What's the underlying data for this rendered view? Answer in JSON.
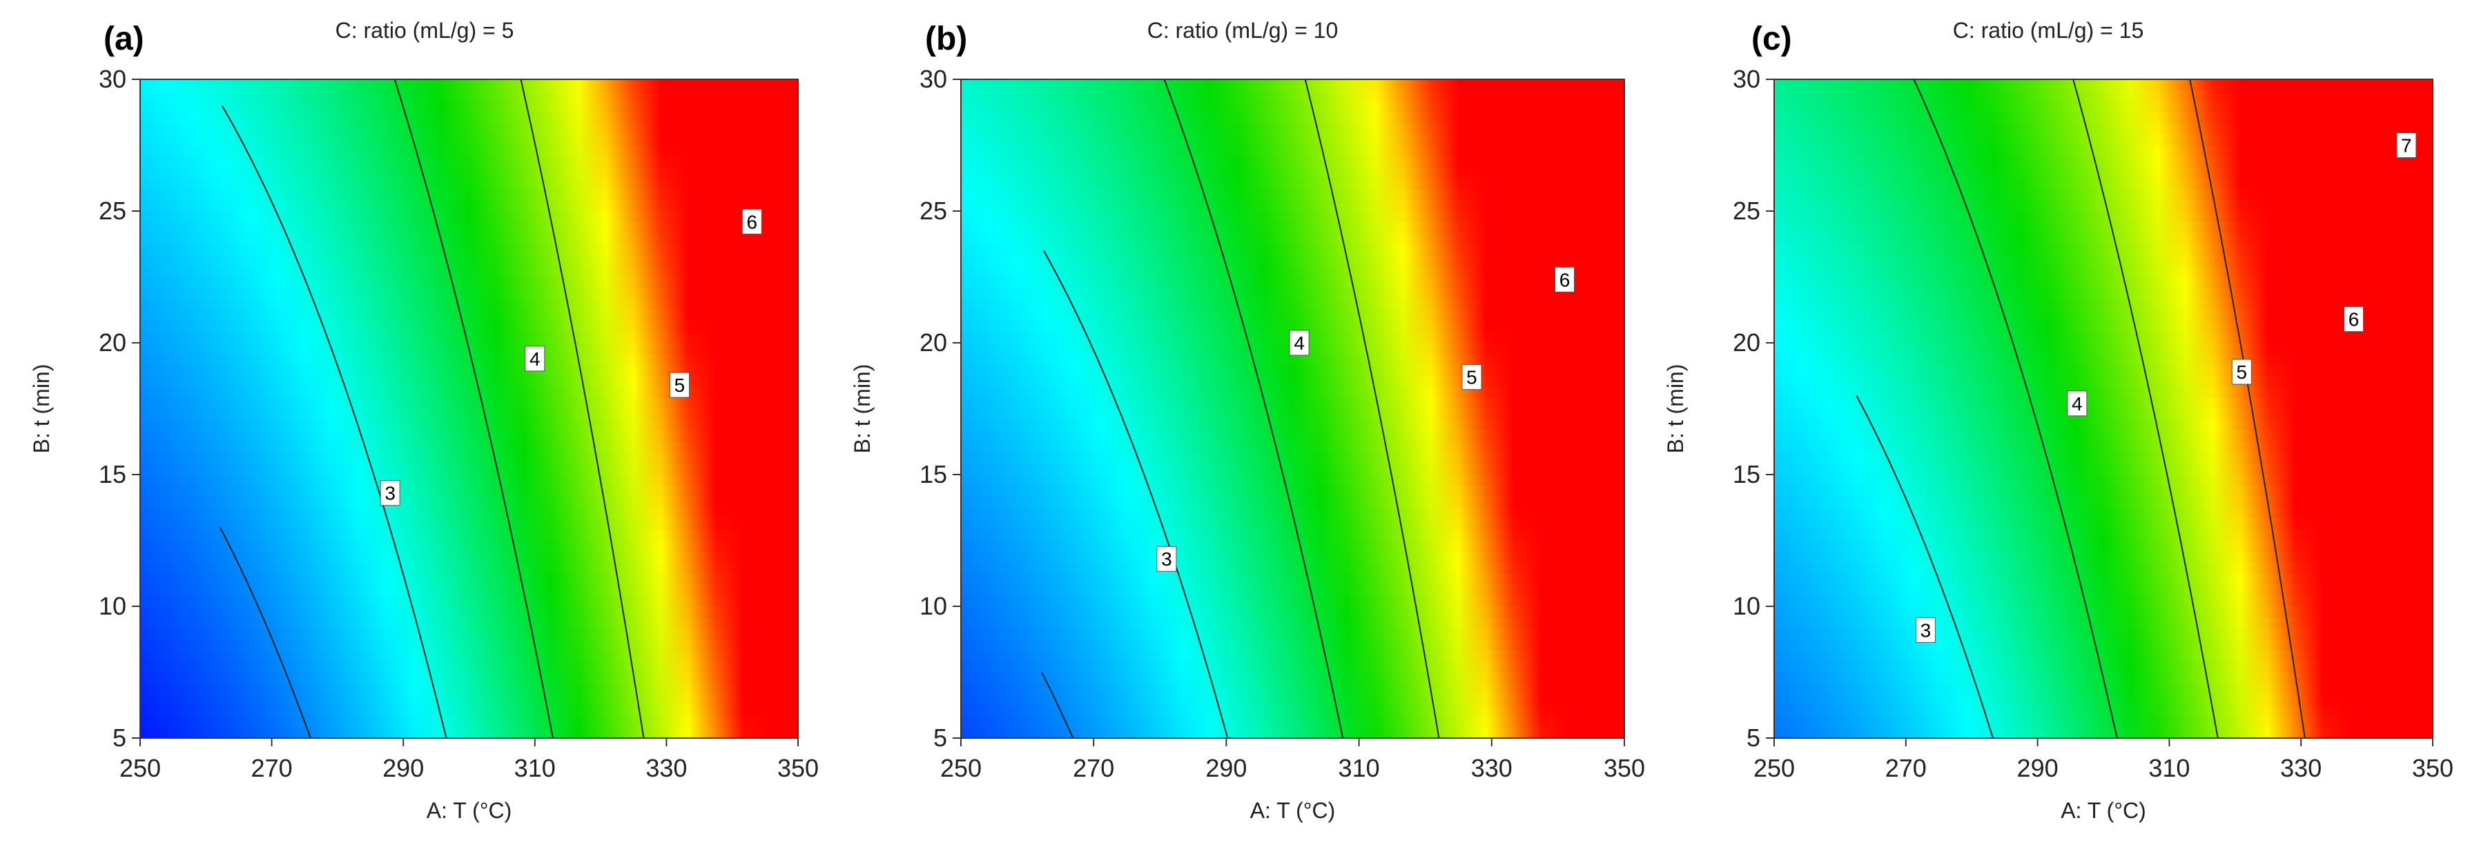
{
  "chart_data": [
    {
      "type": "contour",
      "panel_letter": "(a)",
      "title": "C: ratio (mL/g) = 5",
      "ratio": 5,
      "xlabel": "A: T (°C)",
      "ylabel": "B: t (min)",
      "xlim": [
        250,
        350
      ],
      "ylim": [
        5,
        30
      ],
      "xticks": [
        250,
        270,
        290,
        310,
        330,
        350
      ],
      "yticks": [
        5,
        10,
        15,
        20,
        25,
        30
      ],
      "color_range": [
        2.0,
        7.3
      ],
      "contour_levels": [
        3,
        4,
        5,
        6
      ],
      "contour_label_positions": [
        {
          "level": 3,
          "x": 288,
          "y": 14.3
        },
        {
          "level": 4,
          "x": 310,
          "y": 19.4
        },
        {
          "level": 5,
          "x": 332,
          "y": 18.4
        },
        {
          "level": 6,
          "x": 343,
          "y": 24.6
        }
      ]
    },
    {
      "type": "contour",
      "panel_letter": "(b)",
      "title": "C: ratio (mL/g) = 10",
      "ratio": 10,
      "xlabel": "A: T (°C)",
      "ylabel": "B: t (min)",
      "xlim": [
        250,
        350
      ],
      "ylim": [
        5,
        30
      ],
      "xticks": [
        250,
        270,
        290,
        310,
        330,
        350
      ],
      "yticks": [
        5,
        10,
        15,
        20,
        25,
        30
      ],
      "color_range": [
        2.0,
        7.3
      ],
      "contour_levels": [
        3,
        4,
        5,
        6
      ],
      "contour_label_positions": [
        {
          "level": 3,
          "x": 281,
          "y": 11.8
        },
        {
          "level": 4,
          "x": 301,
          "y": 20.0
        },
        {
          "level": 5,
          "x": 327,
          "y": 18.7
        },
        {
          "level": 6,
          "x": 341,
          "y": 22.4
        }
      ]
    },
    {
      "type": "contour",
      "panel_letter": "(c)",
      "title": "C: ratio (mL/g) = 15",
      "ratio": 15,
      "xlabel": "A: T (°C)",
      "ylabel": "B: t (min)",
      "xlim": [
        250,
        350
      ],
      "ylim": [
        5,
        30
      ],
      "xticks": [
        250,
        270,
        290,
        310,
        330,
        350
      ],
      "yticks": [
        5,
        10,
        15,
        20,
        25,
        30
      ],
      "color_range": [
        2.0,
        7.3
      ],
      "contour_levels": [
        3,
        4,
        5,
        6,
        7
      ],
      "contour_label_positions": [
        {
          "level": 3,
          "x": 273,
          "y": 9.1
        },
        {
          "level": 4,
          "x": 296,
          "y": 17.7
        },
        {
          "level": 5,
          "x": 321,
          "y": 18.9
        },
        {
          "level": 6,
          "x": 338,
          "y": 20.9
        },
        {
          "level": 7,
          "x": 346,
          "y": 27.5
        }
      ]
    }
  ]
}
